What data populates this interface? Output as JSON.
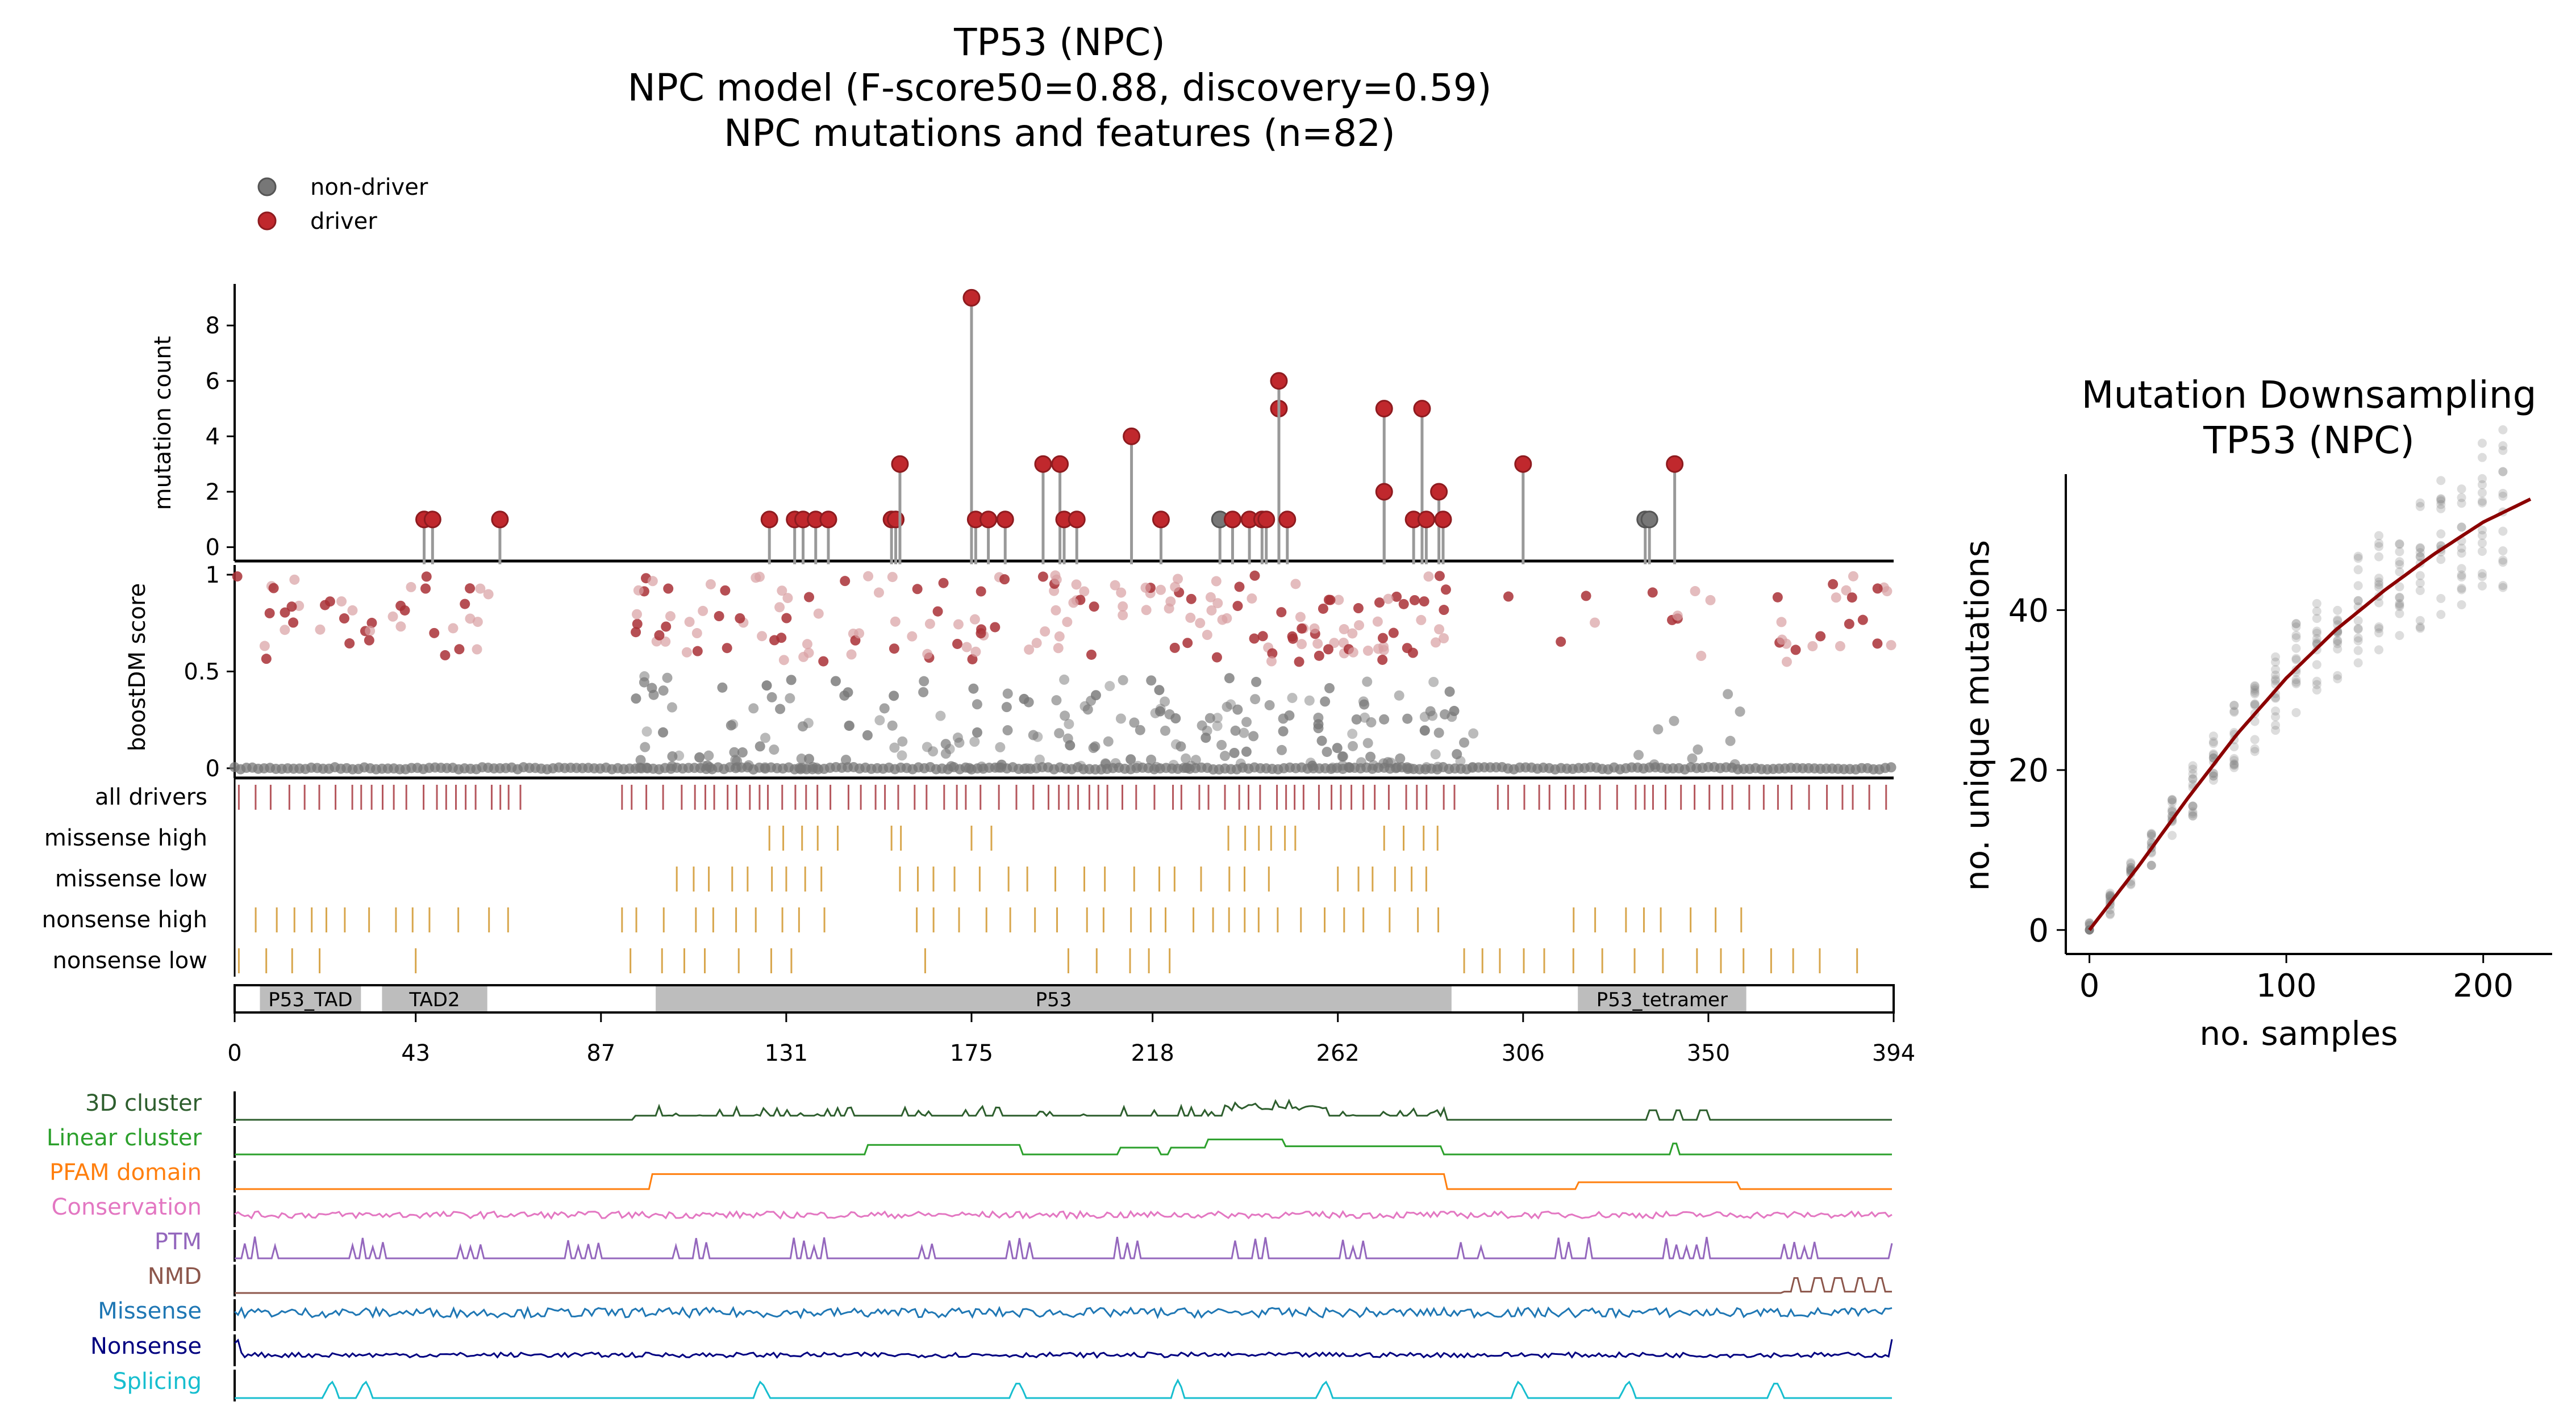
{
  "title": {
    "line1": "TP53 (NPC)",
    "line2": "NPC model (F-score50=0.88, discovery=0.59)",
    "line3": "NPC mutations and features (n=82)"
  },
  "legend": {
    "nondriver": "non-driver",
    "driver": "driver"
  },
  "colors": {
    "driver": "#c0282d",
    "nondriver": "#777777",
    "track_driver": "#b5575d",
    "track_gold": "#d8a64c",
    "domain_fill": "#bdbdbd",
    "downsampling_line": "#8b0000"
  },
  "chart_data": [
    {
      "type": "scatter",
      "name": "lollipop",
      "ylabel": "mutation count",
      "ylim": [
        -0.5,
        9.5
      ],
      "yticks": [
        "0",
        "2",
        "4",
        "6",
        "8"
      ],
      "xlim": [
        0,
        394
      ],
      "points": [
        {
          "pos": 45,
          "count": 1
        },
        {
          "pos": 47,
          "count": 1
        },
        {
          "pos": 63,
          "count": 1
        },
        {
          "pos": 127,
          "count": 1
        },
        {
          "pos": 133,
          "count": 1
        },
        {
          "pos": 135,
          "count": 1
        },
        {
          "pos": 138,
          "count": 1
        },
        {
          "pos": 141,
          "count": 1
        },
        {
          "pos": 156,
          "count": 1
        },
        {
          "pos": 157,
          "count": 1
        },
        {
          "pos": 158,
          "count": 3
        },
        {
          "pos": 175,
          "count": 9
        },
        {
          "pos": 176,
          "count": 1
        },
        {
          "pos": 179,
          "count": 1
        },
        {
          "pos": 183,
          "count": 1
        },
        {
          "pos": 192,
          "count": 3
        },
        {
          "pos": 196,
          "count": 3
        },
        {
          "pos": 197,
          "count": 1
        },
        {
          "pos": 200,
          "count": 1
        },
        {
          "pos": 213,
          "count": 4
        },
        {
          "pos": 220,
          "count": 1
        },
        {
          "pos": 234,
          "count": 1,
          "driver": false
        },
        {
          "pos": 237,
          "count": 1
        },
        {
          "pos": 241,
          "count": 1
        },
        {
          "pos": 244,
          "count": 1
        },
        {
          "pos": 245,
          "count": 1
        },
        {
          "pos": 248,
          "count": 5
        },
        {
          "pos": 248,
          "count": 6
        },
        {
          "pos": 250,
          "count": 1
        },
        {
          "pos": 273,
          "count": 5
        },
        {
          "pos": 273,
          "count": 2
        },
        {
          "pos": 280,
          "count": 1
        },
        {
          "pos": 282,
          "count": 5
        },
        {
          "pos": 283,
          "count": 1
        },
        {
          "pos": 286,
          "count": 2
        },
        {
          "pos": 287,
          "count": 1
        },
        {
          "pos": 306,
          "count": 3
        },
        {
          "pos": 335,
          "count": 1,
          "driver": false
        },
        {
          "pos": 336,
          "count": 1,
          "driver": false
        },
        {
          "pos": 342,
          "count": 3
        }
      ]
    },
    {
      "type": "scatter",
      "name": "boostdm",
      "ylabel": "boostDM score",
      "ylim": [
        -0.05,
        1.05
      ],
      "yticks": [
        "0",
        "0.5",
        "1"
      ],
      "xlim": [
        0,
        394
      ]
    },
    {
      "type": "table",
      "name": "tracks",
      "labels": [
        "all drivers",
        "missense high",
        "missense low",
        "nonsense high",
        "nonsense low"
      ],
      "domains": [
        {
          "name": "P53_TAD",
          "start": 6,
          "end": 30
        },
        {
          "name": "TAD2",
          "start": 35,
          "end": 60
        },
        {
          "name": "P53",
          "start": 100,
          "end": 289
        },
        {
          "name": "P53_tetramer",
          "start": 319,
          "end": 359
        }
      ],
      "xticks": [
        "0",
        "43",
        "87",
        "131",
        "175",
        "218",
        "262",
        "306",
        "350",
        "394"
      ]
    },
    {
      "type": "line",
      "name": "features",
      "features": [
        {
          "label": "3D cluster",
          "color": "#2d5e2d"
        },
        {
          "label": "Linear cluster",
          "color": "#2ca02c"
        },
        {
          "label": "PFAM domain",
          "color": "#ff7f0e"
        },
        {
          "label": "Conservation",
          "color": "#e377c2"
        },
        {
          "label": "PTM",
          "color": "#9467bd"
        },
        {
          "label": "NMD",
          "color": "#8c564b"
        },
        {
          "label": "Missense",
          "color": "#1f77b4"
        },
        {
          "label": "Nonsense",
          "color": "#000080"
        },
        {
          "label": "Splicing",
          "color": "#17becf"
        }
      ]
    },
    {
      "type": "scatter",
      "name": "downsampling",
      "title1": "Mutation Downsampling",
      "title2": "TP53 (NPC)",
      "xlabel": "no. samples",
      "ylabel": "no. unique mutations",
      "xlim": [
        -12,
        235
      ],
      "ylim": [
        -3,
        57
      ],
      "xticks": [
        0,
        100,
        200
      ],
      "yticks": [
        0,
        20,
        40
      ],
      "fit": [
        [
          0,
          0
        ],
        [
          25,
          8
        ],
        [
          50,
          16.5
        ],
        [
          75,
          24.5
        ],
        [
          100,
          31.5
        ],
        [
          125,
          37.5
        ],
        [
          150,
          42.5
        ],
        [
          175,
          47
        ],
        [
          200,
          51
        ],
        [
          225,
          54
        ]
      ]
    }
  ]
}
